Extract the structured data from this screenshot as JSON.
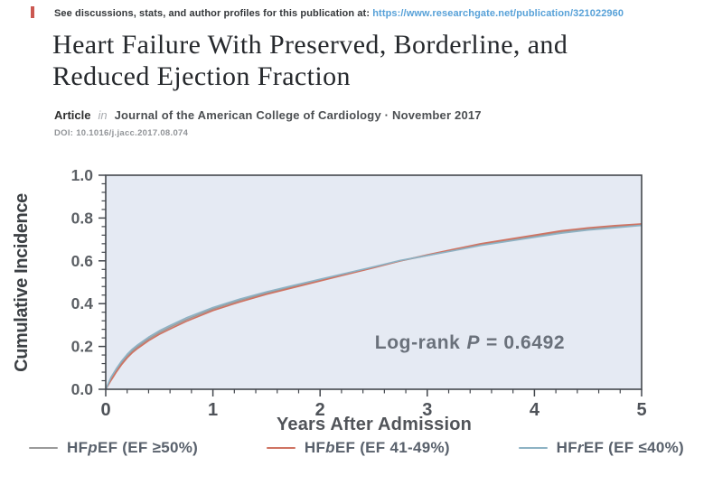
{
  "page": {
    "top_note": "See discussions, stats, and author profiles for this publication at:",
    "top_link": "https://www.researchgate.net/publication/321022960",
    "title_line1": "Heart Failure With Preserved, Borderline, and",
    "title_line2": "Reduced Ejection Fraction",
    "article_label": "Article",
    "article_in": "in",
    "article_source": "Journal of the American College of Cardiology · November 2017",
    "doi": "DOI: 10.1016/j.jacc.2017.08.074"
  },
  "chart_data": {
    "type": "line",
    "title": "",
    "xlabel": "Years After Admission",
    "ylabel": "Cumulative Incidence",
    "xlim": [
      0,
      5
    ],
    "ylim": [
      0,
      1
    ],
    "grid": false,
    "legend_position": "bottom",
    "plot_bg": "#e5eaf3",
    "frame_color": "#43474d",
    "x_ticks": [
      "0",
      "1",
      "2",
      "3",
      "4",
      "5"
    ],
    "y_ticks": [
      "0.0",
      "0.2",
      "0.4",
      "0.6",
      "0.8",
      "1.0"
    ],
    "annotation": {
      "pre": "Log-rank",
      "italic": "P",
      "post": "= 0.6492"
    },
    "x": [
      0,
      0.05,
      0.1,
      0.15,
      0.2,
      0.25,
      0.3,
      0.4,
      0.5,
      0.6,
      0.75,
      1.0,
      1.25,
      1.5,
      1.75,
      2.0,
      2.25,
      2.5,
      2.75,
      3.0,
      3.25,
      3.5,
      3.75,
      4.0,
      4.25,
      4.5,
      4.75,
      5.0
    ],
    "series": [
      {
        "name": "HFpEF (EF ≥50%)",
        "name_pre": "HF",
        "name_italic": "p",
        "name_post": "EF (EF ≥50%)",
        "color": "#9a9a9a",
        "values": [
          0,
          0.05,
          0.09,
          0.125,
          0.155,
          0.18,
          0.2,
          0.235,
          0.265,
          0.29,
          0.325,
          0.375,
          0.415,
          0.45,
          0.48,
          0.51,
          0.54,
          0.57,
          0.6,
          0.625,
          0.65,
          0.675,
          0.695,
          0.715,
          0.735,
          0.75,
          0.76,
          0.77
        ]
      },
      {
        "name": "HFbEF (EF 41-49%)",
        "name_pre": "HF",
        "name_italic": "b",
        "name_post": "EF (EF 41-49%)",
        "color": "#cf7362",
        "values": [
          0,
          0.042,
          0.082,
          0.117,
          0.147,
          0.172,
          0.192,
          0.227,
          0.257,
          0.282,
          0.317,
          0.368,
          0.408,
          0.444,
          0.475,
          0.506,
          0.537,
          0.568,
          0.6,
          0.628,
          0.654,
          0.68,
          0.7,
          0.72,
          0.74,
          0.754,
          0.764,
          0.772
        ]
      },
      {
        "name": "HFrEF (EF ≤40%)",
        "name_pre": "HF",
        "name_italic": "r",
        "name_post": "EF (EF ≤40%)",
        "color": "#8db2c4",
        "values": [
          0,
          0.056,
          0.097,
          0.133,
          0.163,
          0.188,
          0.208,
          0.243,
          0.273,
          0.298,
          0.333,
          0.382,
          0.421,
          0.455,
          0.485,
          0.514,
          0.543,
          0.572,
          0.602,
          0.625,
          0.648,
          0.672,
          0.691,
          0.71,
          0.729,
          0.744,
          0.755,
          0.766
        ]
      }
    ]
  }
}
